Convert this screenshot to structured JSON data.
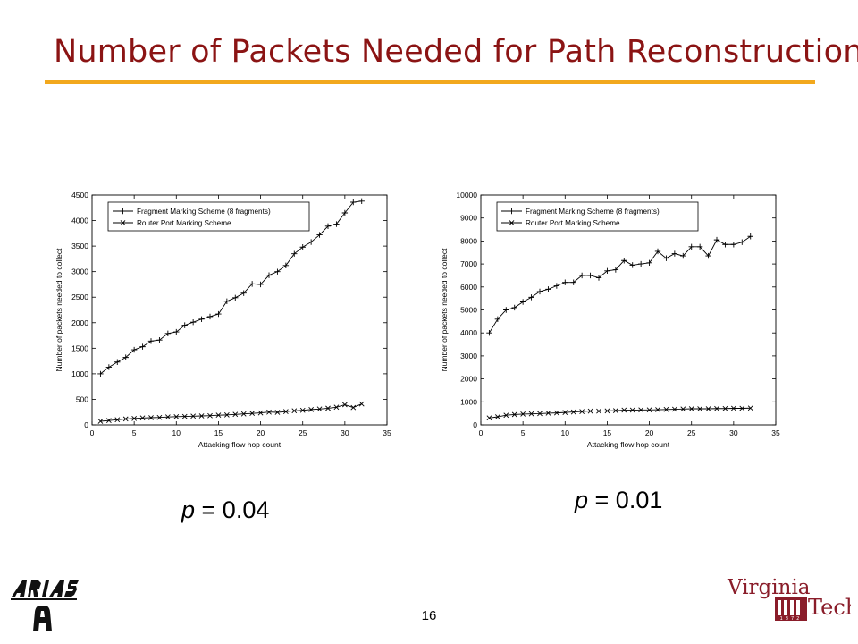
{
  "slide": {
    "title": "Number of Packets Needed for Path Reconstruction",
    "page_number": "16",
    "p_left": {
      "symbol": "p",
      "rest": " = 0.04"
    },
    "p_right": {
      "symbol": "p",
      "rest": " = 0.01"
    }
  },
  "logos": {
    "left": {
      "name": "ARIAS"
    },
    "right": {
      "name": "Virginia Tech",
      "line1": "Virginia",
      "line2": "Tech",
      "est": "1872"
    }
  },
  "colors": {
    "title": "#8b1414",
    "rule": "#f2a81d",
    "series": "#000000",
    "vt_maroon": "#8a1d2a"
  },
  "chart_data": [
    {
      "type": "line",
      "xlabel": "Attacking flow hop count",
      "ylabel": "Number of packets needed to collect",
      "xlim": [
        0,
        35
      ],
      "ylim": [
        0,
        4500
      ],
      "xticks": [
        0,
        5,
        10,
        15,
        20,
        25,
        30,
        35
      ],
      "yticks": [
        0,
        500,
        1000,
        1500,
        2000,
        2500,
        3000,
        3500,
        4000,
        4500
      ],
      "grid": false,
      "legend": "top-left",
      "x": [
        1,
        2,
        3,
        4,
        5,
        6,
        7,
        8,
        9,
        10,
        11,
        12,
        13,
        14,
        15,
        16,
        17,
        18,
        19,
        20,
        21,
        22,
        23,
        24,
        25,
        26,
        27,
        28,
        29,
        30,
        31,
        32
      ],
      "series": [
        {
          "name": "Fragment Marking Scheme (8 fragments)",
          "marker": "+",
          "values": [
            1000,
            1130,
            1230,
            1320,
            1470,
            1530,
            1640,
            1660,
            1790,
            1820,
            1950,
            2010,
            2070,
            2120,
            2170,
            2420,
            2490,
            2580,
            2760,
            2750,
            2930,
            3000,
            3120,
            3350,
            3480,
            3580,
            3720,
            3890,
            3930,
            4150,
            4360,
            4380
          ]
        },
        {
          "name": "Router Port Marking Scheme",
          "marker": "x",
          "values": [
            70,
            85,
            100,
            115,
            125,
            135,
            140,
            145,
            155,
            160,
            165,
            170,
            175,
            180,
            190,
            195,
            205,
            215,
            225,
            235,
            250,
            245,
            260,
            275,
            285,
            300,
            310,
            325,
            345,
            395,
            340,
            410
          ]
        }
      ]
    },
    {
      "type": "line",
      "xlabel": "Attacking flow hop count",
      "ylabel": "Number of packets needed to collect",
      "xlim": [
        0,
        35
      ],
      "ylim": [
        0,
        10000
      ],
      "xticks": [
        0,
        5,
        10,
        15,
        20,
        25,
        30,
        35
      ],
      "yticks": [
        0,
        1000,
        2000,
        3000,
        4000,
        5000,
        6000,
        7000,
        8000,
        9000,
        10000
      ],
      "grid": false,
      "legend": "top-left",
      "x": [
        1,
        2,
        3,
        4,
        5,
        6,
        7,
        8,
        9,
        10,
        11,
        12,
        13,
        14,
        15,
        16,
        17,
        18,
        19,
        20,
        21,
        22,
        23,
        24,
        25,
        26,
        27,
        28,
        29,
        30,
        31,
        32
      ],
      "series": [
        {
          "name": "Fragment Marking Scheme (8 fragments)",
          "marker": "+",
          "values": [
            4000,
            4600,
            5000,
            5100,
            5350,
            5550,
            5800,
            5900,
            6050,
            6200,
            6200,
            6500,
            6500,
            6400,
            6700,
            6750,
            7150,
            6950,
            7000,
            7050,
            7550,
            7250,
            7450,
            7350,
            7750,
            7750,
            7350,
            8050,
            7850,
            7850,
            7950,
            8200
          ]
        },
        {
          "name": "Router Port Marking Scheme",
          "marker": "x",
          "values": [
            300,
            350,
            420,
            450,
            470,
            480,
            490,
            510,
            520,
            540,
            560,
            580,
            600,
            600,
            610,
            620,
            640,
            640,
            650,
            650,
            660,
            670,
            680,
            690,
            700,
            700,
            700,
            710,
            710,
            720,
            720,
            730
          ]
        }
      ]
    }
  ]
}
